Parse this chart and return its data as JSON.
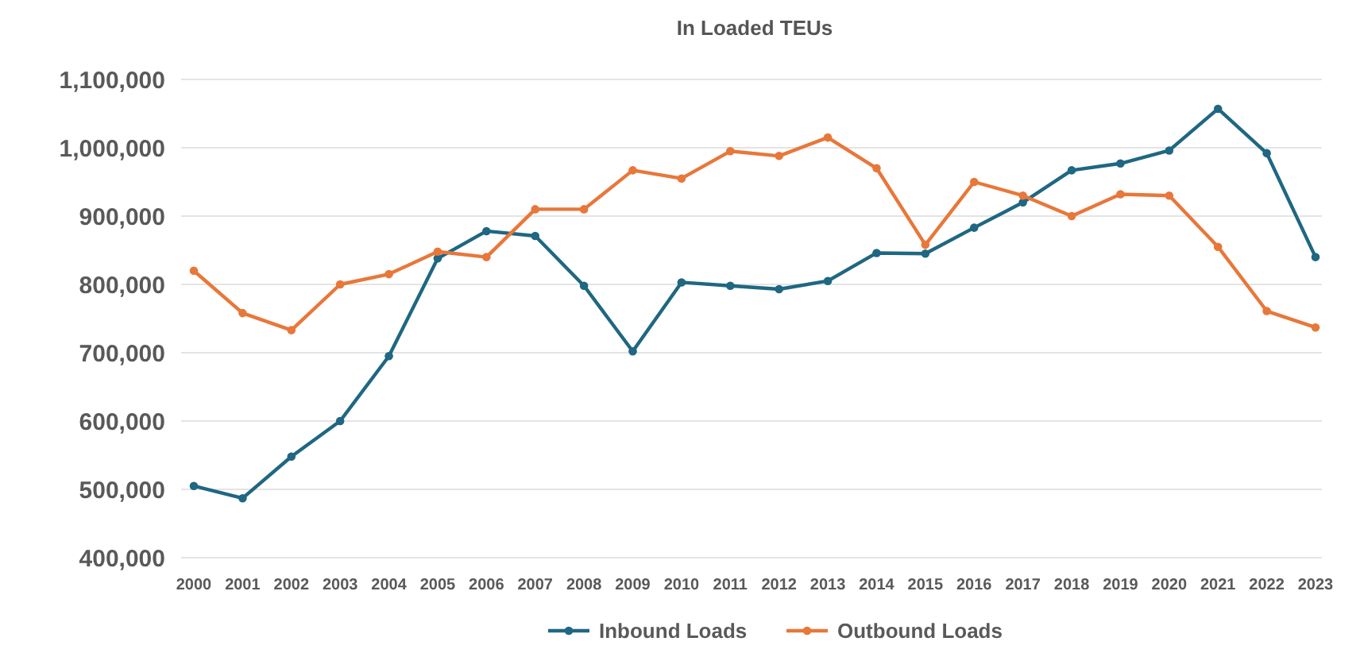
{
  "chart_data": {
    "type": "line",
    "title": "In Loaded TEUs",
    "categories": [
      "2000",
      "2001",
      "2002",
      "2003",
      "2004",
      "2005",
      "2006",
      "2007",
      "2008",
      "2009",
      "2010",
      "2011",
      "2012",
      "2013",
      "2014",
      "2015",
      "2016",
      "2017",
      "2018",
      "2019",
      "2020",
      "2021",
      "2022",
      "2023"
    ],
    "series": [
      {
        "name": "Inbound Loads",
        "color": "#1f6782",
        "values": [
          505000,
          487000,
          548000,
          600000,
          695000,
          838000,
          878000,
          871000,
          798000,
          702000,
          803000,
          798000,
          793000,
          805000,
          846000,
          845000,
          883000,
          920000,
          967000,
          977000,
          996000,
          1057000,
          992000,
          840000
        ]
      },
      {
        "name": "Outbound Loads",
        "color": "#e8773a",
        "values": [
          820000,
          758000,
          733000,
          800000,
          815000,
          848000,
          840000,
          910000,
          910000,
          967000,
          955000,
          995000,
          988000,
          1015000,
          970000,
          858000,
          950000,
          930000,
          900000,
          932000,
          930000,
          855000,
          761000,
          737000
        ]
      }
    ],
    "ylim": [
      400000,
      1100000
    ],
    "yticks": [
      {
        "value": 400000,
        "label": "400,000"
      },
      {
        "value": 500000,
        "label": "500,000"
      },
      {
        "value": 600000,
        "label": "600,000"
      },
      {
        "value": 700000,
        "label": "700,000"
      },
      {
        "value": 800000,
        "label": "800,000"
      },
      {
        "value": 900000,
        "label": "900,000"
      },
      {
        "value": 1000000,
        "label": "1,000,000"
      },
      {
        "value": 1100000,
        "label": "1,100,000"
      }
    ],
    "grid": "y",
    "legend": "bottom",
    "marker": "circle",
    "line_style": "solid"
  }
}
